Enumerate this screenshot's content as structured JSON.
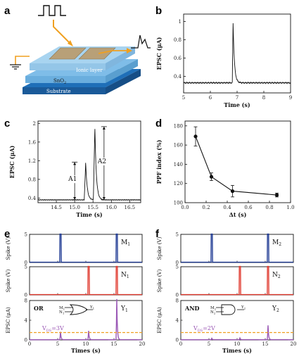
{
  "panels": {
    "a": {
      "label": "a",
      "layers": {
        "ionic": "Ionic layer",
        "sno2": "SnO",
        "sno2_sub": "2",
        "substrate": "Substrate"
      }
    },
    "b": {
      "label": "b",
      "chart_data": {
        "type": "line",
        "xlabel": "Time (s)",
        "ylabel": "EPSC (μA)",
        "xlim": [
          5,
          9
        ],
        "ylim": [
          0.22,
          1.08
        ],
        "xticks": [
          5,
          6,
          7,
          8,
          9
        ],
        "yticks": [
          0.4,
          0.6,
          0.8,
          1.0
        ],
        "xtick_labels": [
          "5",
          "6",
          "7",
          "8",
          "9"
        ],
        "ytick_labels": [
          "0.4",
          "0.6",
          "0.8",
          "1"
        ],
        "baseline": 0.33,
        "pulse_times": [
          6.85
        ],
        "pulse_peaks": [
          0.98
        ]
      }
    },
    "c": {
      "label": "c",
      "chart_data": {
        "type": "line",
        "xlabel": "Time (s)",
        "ylabel": "EPSC (μA)",
        "xlim": [
          14.0,
          16.8
        ],
        "ylim": [
          0.3,
          2.05
        ],
        "xticks": [
          14.5,
          15.0,
          15.5,
          16.0,
          16.5
        ],
        "yticks": [
          0.4,
          0.8,
          1.2,
          1.6,
          2.0
        ],
        "xtick_labels": [
          "14.5",
          "15.0",
          "15.5",
          "16.0",
          "16.5"
        ],
        "ytick_labels": [
          "0.4",
          "0.8",
          "1.2",
          "1.6",
          "2"
        ],
        "baseline": 0.36,
        "pulse_times": [
          15.3,
          15.55
        ],
        "pulse_peaks": [
          1.17,
          1.93
        ],
        "annotations": [
          "A1",
          "A2"
        ],
        "a1_x": 15.0,
        "a2_x": 15.8
      }
    },
    "d": {
      "label": "d",
      "chart_data": {
        "type": "line",
        "xlabel": "Δt (s)",
        "ylabel": "PPF index (%)",
        "xlim": [
          0.0,
          1.0
        ],
        "ylim": [
          100,
          185
        ],
        "xticks": [
          0.0,
          0.2,
          0.4,
          0.6,
          0.8,
          1.0
        ],
        "yticks": [
          100,
          120,
          140,
          160,
          180
        ],
        "xtick_labels": [
          "0.0",
          "0.2",
          "0.4",
          "0.6",
          "0.8",
          "1.0"
        ],
        "ytick_labels": [
          "100",
          "120",
          "140",
          "160",
          "180"
        ],
        "x": [
          0.1,
          0.25,
          0.45,
          0.87
        ],
        "y": [
          169,
          127,
          112,
          108
        ],
        "err": [
          10,
          4,
          6,
          2
        ]
      }
    },
    "e": {
      "label": "e",
      "gate": "OR",
      "vds_label": "V",
      "vds_sub": "DS",
      "vds_value": "=3V",
      "gate_in1": "M",
      "gate_in1_sub": "1",
      "gate_in2": "N",
      "gate_in2_sub": "1",
      "gate_out": "Y",
      "gate_out_sub": "1",
      "chart_data": {
        "type": "line",
        "xlim": [
          0,
          20
        ],
        "xticks": [
          0,
          5,
          10,
          15,
          20
        ],
        "xtick_labels": [
          "0",
          "5",
          "10",
          "15",
          "20"
        ],
        "xlabel": "Times (s)",
        "rows": [
          {
            "ylabel": "Spike (V)",
            "ylim": [
              0,
              5
            ],
            "yticks": [
              0,
              5
            ],
            "ytick_labels": [
              "0",
              "5"
            ],
            "color": "#1f3a93",
            "pulses": [
              5.5,
              15.5
            ],
            "amplitude": 5,
            "tag": "M",
            "tag_sub": "1"
          },
          {
            "ylabel": "Spike (V)",
            "ylim": [
              0,
              5
            ],
            "yticks": [
              0,
              5
            ],
            "ytick_labels": [
              "0",
              "5"
            ],
            "color": "#e03a2f",
            "pulses": [
              10.5,
              15.5
            ],
            "amplitude": 5,
            "tag": "N",
            "tag_sub": "1"
          },
          {
            "ylabel": "EPSC (μA)",
            "ylim": [
              0,
              8
            ],
            "yticks": [
              0,
              4,
              8
            ],
            "ytick_labels": [
              "0",
              "4",
              "8"
            ],
            "color": "#9b59b6",
            "pulses": [
              5.5,
              10.5,
              15.5
            ],
            "peaks": [
              1.6,
              1.8,
              8.3
            ],
            "tag": "Y",
            "tag_sub": "1",
            "threshold": 1.5
          }
        ]
      }
    },
    "f": {
      "label": "f",
      "gate": "AND",
      "vds_label": "V",
      "vds_sub": "DS",
      "vds_value": "=2V",
      "gate_in1": "M",
      "gate_in1_sub": "2",
      "gate_in2": "N",
      "gate_in2_sub": "2",
      "gate_out": "Y",
      "gate_out_sub": "2",
      "chart_data": {
        "type": "line",
        "xlim": [
          0,
          20
        ],
        "xticks": [
          0,
          5,
          10,
          15,
          20
        ],
        "xtick_labels": [
          "0",
          "5",
          "10",
          "15",
          "20"
        ],
        "xlabel": "Times (s)",
        "rows": [
          {
            "ylabel": "Spike (V)",
            "ylim": [
              0,
              5
            ],
            "yticks": [
              0,
              5
            ],
            "ytick_labels": [
              "0",
              "5"
            ],
            "color": "#1f3a93",
            "pulses": [
              5.5,
              15.5
            ],
            "amplitude": 5,
            "tag": "M",
            "tag_sub": "2"
          },
          {
            "ylabel": "Spike (V)",
            "ylim": [
              0,
              5
            ],
            "yticks": [
              0,
              5
            ],
            "ytick_labels": [
              "0",
              "5"
            ],
            "color": "#e03a2f",
            "pulses": [
              10.5,
              15.5
            ],
            "amplitude": 5,
            "tag": "N",
            "tag_sub": "2"
          },
          {
            "ylabel": "EPSC (μA)",
            "ylim": [
              0,
              8
            ],
            "yticks": [
              0,
              4,
              8
            ],
            "ytick_labels": [
              "0",
              "4",
              "8"
            ],
            "color": "#9b59b6",
            "pulses": [
              5.5,
              10.5,
              15.5
            ],
            "peaks": [
              0.3,
              0.35,
              2.9
            ],
            "tag": "Y",
            "tag_sub": "2",
            "threshold": 1.5
          }
        ]
      }
    }
  }
}
